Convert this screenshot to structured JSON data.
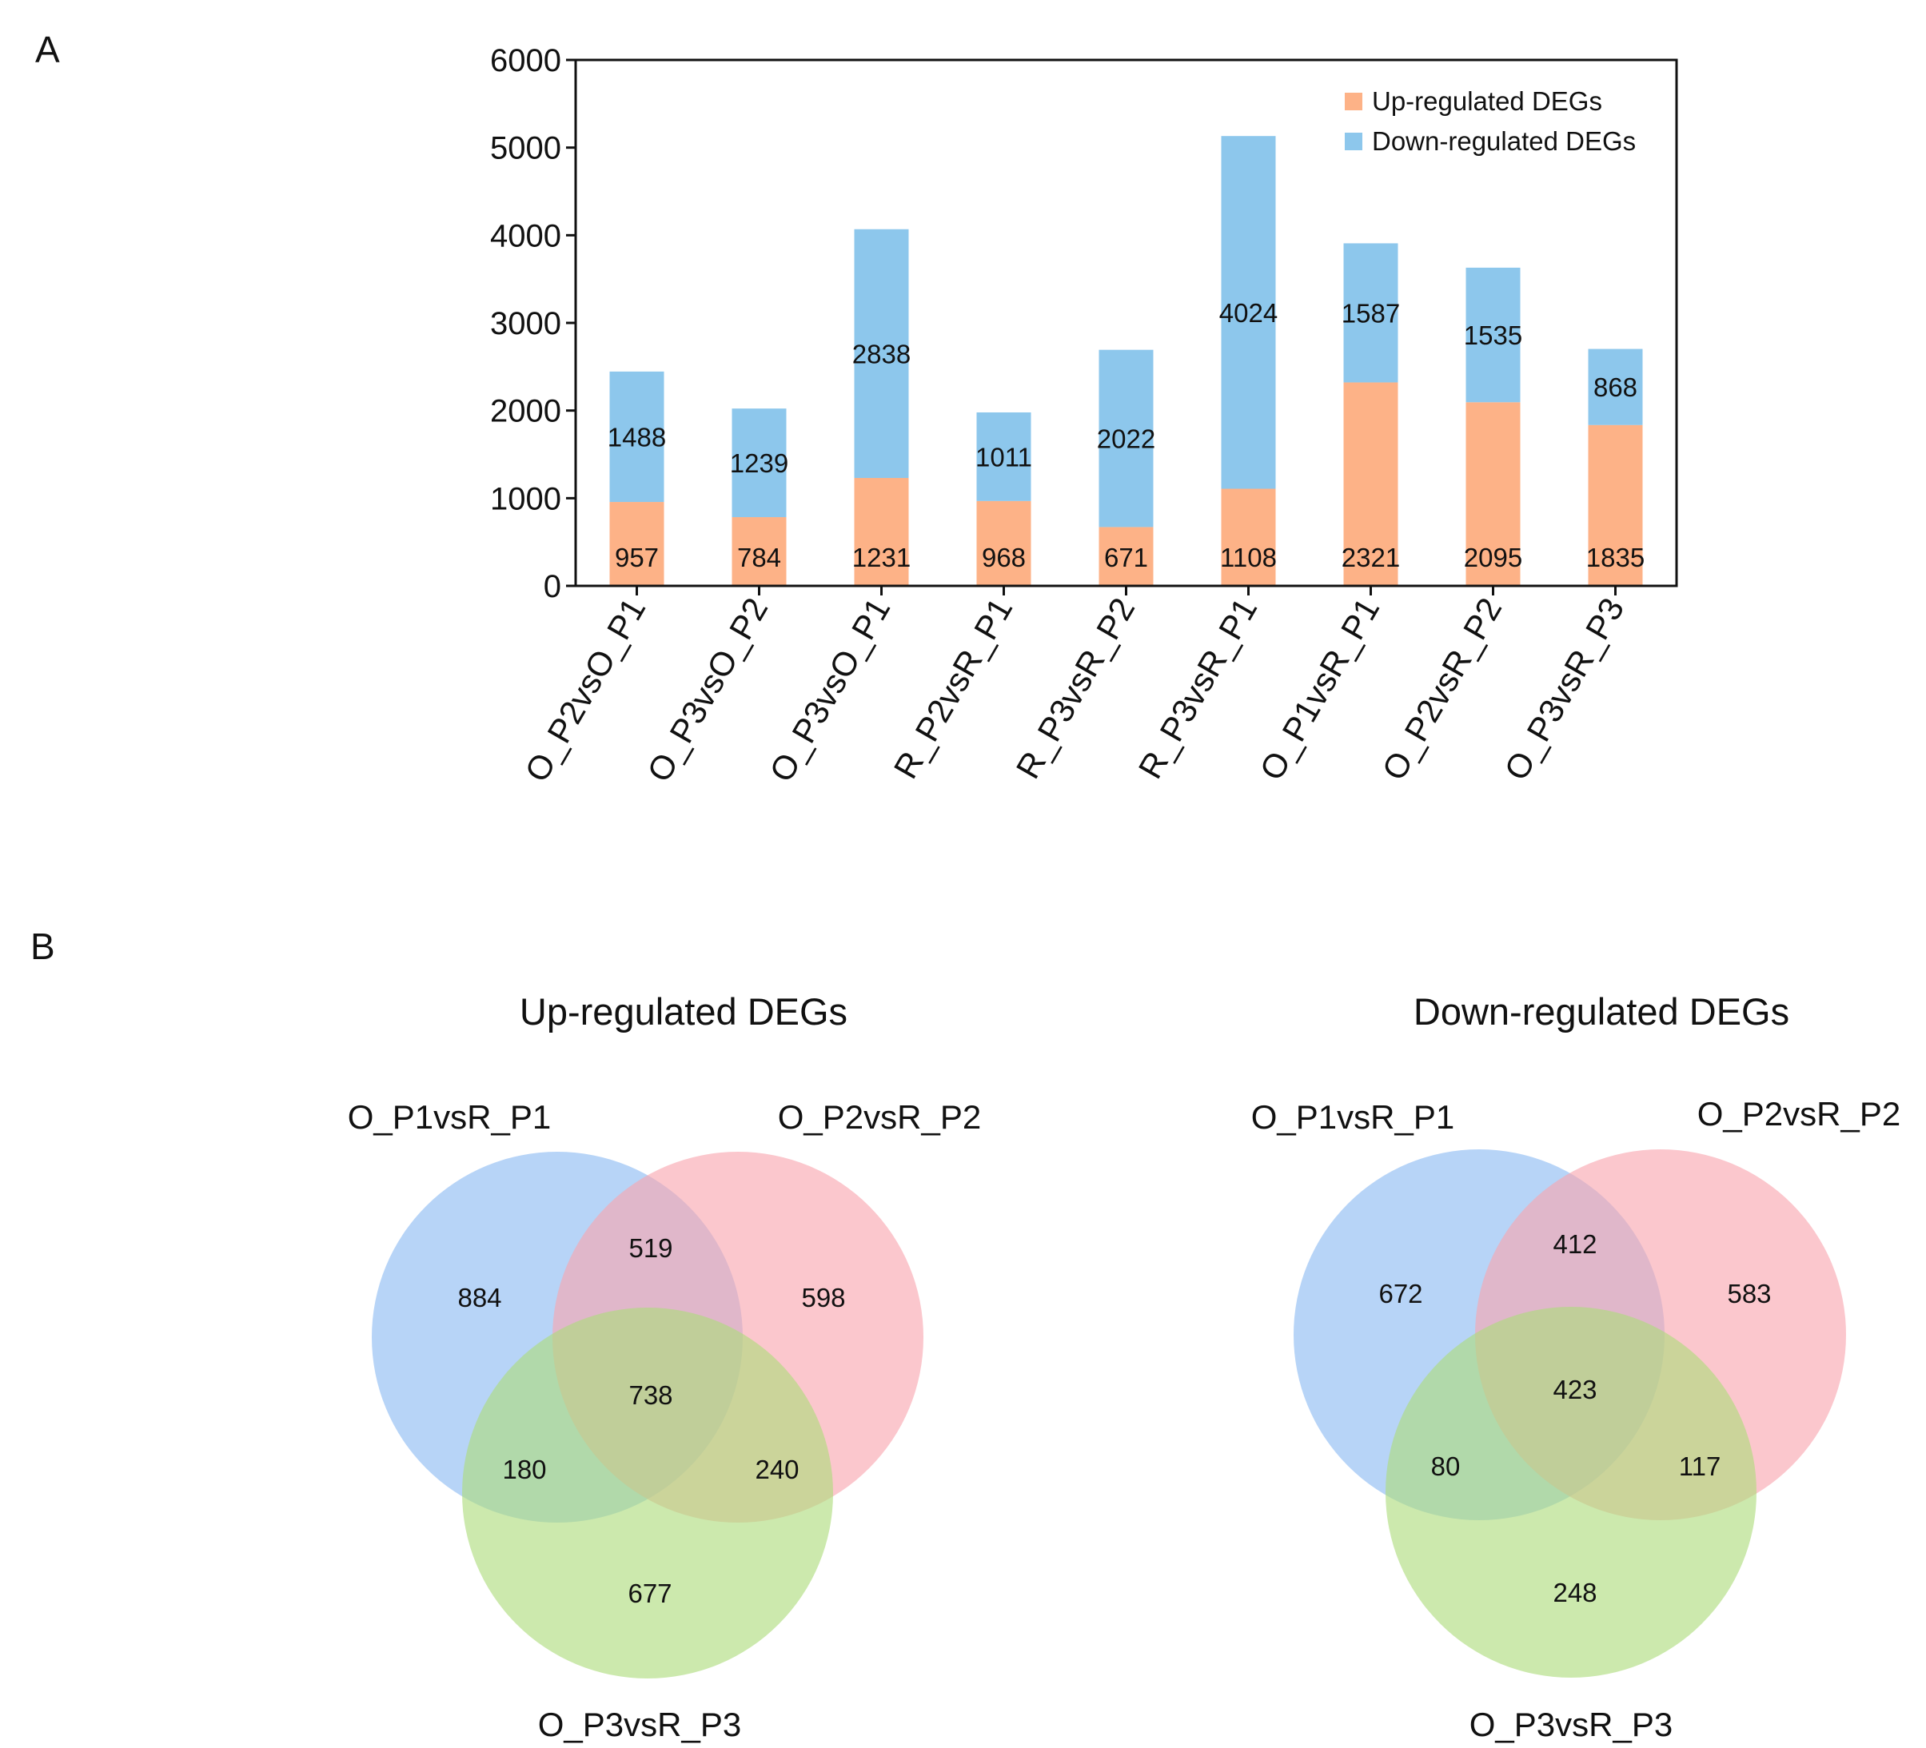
{
  "panel_labels": {
    "a": "A",
    "b": "B"
  },
  "colors": {
    "up": "#FDB287",
    "down": "#8DC7EC",
    "venn_set1": "#8BB9F2",
    "venn_set2": "#F8A5AE",
    "venn_set3": "#ACDB7A"
  },
  "chart_data": [
    {
      "type": "bar",
      "stacked": true,
      "categories": [
        "O_P2vsO_P1",
        "O_P3vsO_P2",
        "O_P3vsO_P1",
        "R_P2vsR_P1",
        "R_P3vsR_P2",
        "R_P3vsR_P1",
        "O_P1vsR_P1",
        "O_P2vsR_P2",
        "O_P3vsR_P3"
      ],
      "series": [
        {
          "name": "Up-regulated DEGs",
          "values": [
            957,
            784,
            1231,
            968,
            671,
            1108,
            2321,
            2095,
            1835
          ]
        },
        {
          "name": "Down-regulated DEGs",
          "values": [
            1488,
            1239,
            2838,
            1011,
            2022,
            4024,
            1587,
            1535,
            868
          ]
        }
      ],
      "ylim": [
        0,
        6000
      ],
      "yticks": [
        0,
        1000,
        2000,
        3000,
        4000,
        5000,
        6000
      ],
      "legend_position": "top-right",
      "grid": false
    },
    {
      "type": "venn",
      "title": "Up-regulated DEGs",
      "sets": [
        "O_P1vsR_P1",
        "O_P2vsR_P2",
        "O_P3vsR_P3"
      ],
      "regions": {
        "only_1": 884,
        "only_2": 598,
        "only_3": 677,
        "1_2": 519,
        "1_3": 180,
        "2_3": 240,
        "1_2_3": 738
      }
    },
    {
      "type": "venn",
      "title": "Down-regulated DEGs",
      "sets": [
        "O_P1vsR_P1",
        "O_P2vsR_P2",
        "O_P3vsR_P3"
      ],
      "regions": {
        "only_1": 672,
        "only_2": 583,
        "only_3": 248,
        "1_2": 412,
        "1_3": 80,
        "2_3": 117,
        "1_2_3": 423
      }
    }
  ]
}
